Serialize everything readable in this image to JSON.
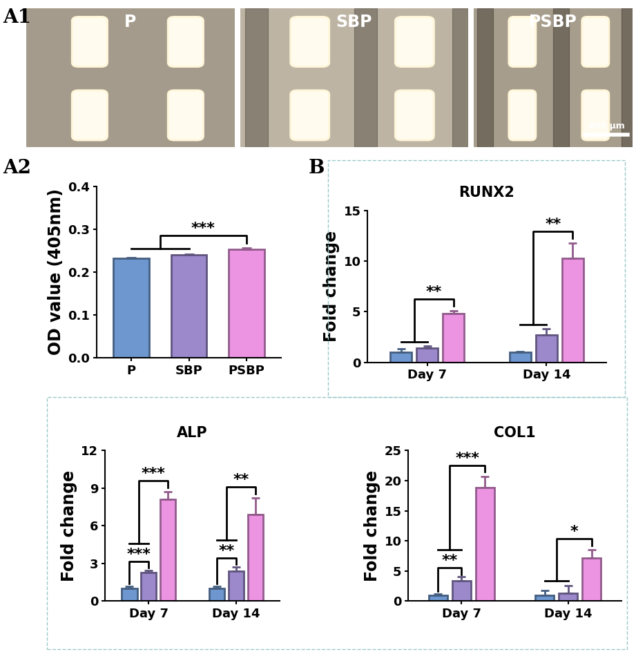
{
  "micrographs": {
    "label": "A1",
    "images": [
      "P",
      "SBP",
      "PSBP"
    ],
    "scale_bar": "400 μm"
  },
  "chart_data": [
    {
      "type": "bar",
      "panel": "A2",
      "ylabel": "OD value (405nm)",
      "categories": [
        "P",
        "SBP",
        "PSBP"
      ],
      "values": [
        0.232,
        0.24,
        0.253
      ],
      "errors": [
        0.002,
        0.002,
        0.003
      ],
      "colors": [
        "#6e97cf",
        "#9b89cc",
        "#ec93e2"
      ],
      "ylim": [
        0,
        0.4
      ],
      "yticks": [
        {
          "value": 0,
          "label": "0.0"
        },
        0.1,
        0.2,
        0.3,
        0.4
      ],
      "annotations": [
        {
          "text": "***",
          "from": [
            0,
            1
          ],
          "to": 2
        }
      ]
    },
    {
      "type": "grouped_bar",
      "panel": "B",
      "title": "RUNX2",
      "ylabel": "Fold change",
      "categories": [
        "Day 7",
        "Day 14"
      ],
      "series": [
        {
          "color": "#6e97cf",
          "values": [
            1.0,
            1.0
          ],
          "errors": [
            0.35,
            0.05
          ]
        },
        {
          "color": "#9b89cc",
          "values": [
            1.4,
            2.7
          ],
          "errors": [
            0.2,
            0.6
          ]
        },
        {
          "color": "#ec93e2",
          "values": [
            4.8,
            10.3
          ],
          "errors": [
            0.3,
            1.5
          ]
        }
      ],
      "ylim": [
        0,
        15
      ],
      "yticks": [
        0,
        5,
        10,
        15
      ],
      "annotations": [
        {
          "group": "Day 7",
          "text": "**",
          "from": [
            0,
            1
          ],
          "to": 2
        },
        {
          "group": "Day 14",
          "text": "**",
          "from": [
            0,
            1
          ],
          "to": 2
        }
      ]
    },
    {
      "type": "grouped_bar",
      "title": "ALP",
      "ylabel": "Fold change",
      "categories": [
        "Day 7",
        "Day 14"
      ],
      "series": [
        {
          "color": "#6e97cf",
          "values": [
            1.0,
            1.0
          ],
          "errors": [
            0.2,
            0.15
          ]
        },
        {
          "color": "#9b89cc",
          "values": [
            2.3,
            2.4
          ],
          "errors": [
            0.15,
            0.3
          ]
        },
        {
          "color": "#ec93e2",
          "values": [
            8.1,
            6.9
          ],
          "errors": [
            0.6,
            1.3
          ]
        }
      ],
      "ylim": [
        0,
        12
      ],
      "yticks": [
        0,
        3,
        6,
        9,
        12
      ],
      "annotations": [
        {
          "group": "Day 7",
          "text": "***",
          "from": [
            0
          ],
          "to": 1
        },
        {
          "group": "Day 7",
          "text": "***",
          "from": [
            0,
            1
          ],
          "to": 2
        },
        {
          "group": "Day 14",
          "text": "**",
          "from": [
            0
          ],
          "to": 1
        },
        {
          "group": "Day 14",
          "text": "**",
          "from": [
            0,
            1
          ],
          "to": 2
        }
      ]
    },
    {
      "type": "grouped_bar",
      "title": "COL1",
      "ylabel": "Fold change",
      "categories": [
        "Day 7",
        "Day 14"
      ],
      "series": [
        {
          "color": "#6e97cf",
          "values": [
            1.0,
            1.0
          ],
          "errors": [
            0.15,
            0.7
          ]
        },
        {
          "color": "#9b89cc",
          "values": [
            3.4,
            1.3
          ],
          "errors": [
            0.6,
            1.3
          ]
        },
        {
          "color": "#ec93e2",
          "values": [
            18.9,
            7.1
          ],
          "errors": [
            1.8,
            1.4
          ]
        }
      ],
      "ylim": [
        0,
        25
      ],
      "yticks": [
        0,
        5,
        10,
        15,
        20,
        25
      ],
      "annotations": [
        {
          "group": "Day 7",
          "text": "**",
          "from": [
            0
          ],
          "to": 1
        },
        {
          "group": "Day 7",
          "text": "***",
          "from": [
            0,
            1
          ],
          "to": 2
        },
        {
          "group": "Day 14",
          "text": "*",
          "from": [
            0,
            1
          ],
          "to": 2
        }
      ]
    }
  ]
}
